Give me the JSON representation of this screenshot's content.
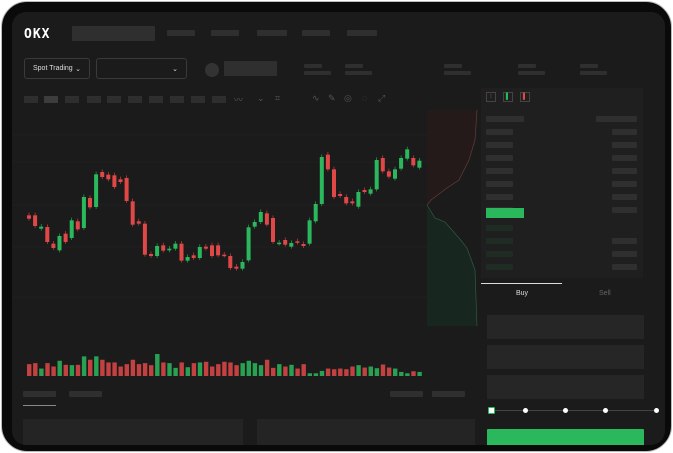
{
  "header": {
    "logo": "OKX"
  },
  "toolbar": {
    "market_type": "Spot Trading",
    "pair_value": ""
  },
  "order_form": {
    "tabs": [
      "Buy",
      "Sell"
    ],
    "active_tab": "Buy",
    "slider_percent": 0,
    "slider_stops": [
      0,
      25,
      50,
      75,
      100
    ]
  },
  "colors": {
    "up": "#2bb85c",
    "down": "#e04848",
    "background": "#1b1b1b",
    "frame": "#0a0a0a"
  },
  "icons": [
    "chevron-down-icon",
    "line-tool-icon",
    "pencil-icon",
    "settings-icon",
    "fullscreen-icon",
    "orderbook-layout-icon"
  ],
  "chart_data": {
    "type": "candlestick",
    "ylim": [
      0,
      420
    ],
    "candles": [
      [
        170,
        160
      ],
      [
        170,
        138
      ],
      [
        130,
        136
      ],
      [
        135,
        90
      ],
      [
        85,
        72
      ],
      [
        65,
        108
      ],
      [
        115,
        90
      ],
      [
        102,
        155
      ],
      [
        152,
        128
      ],
      [
        132,
        225
      ],
      [
        222,
        194
      ],
      [
        195,
        293
      ],
      [
        300,
        285
      ],
      [
        292,
        278
      ],
      [
        290,
        255
      ],
      [
        278,
        270
      ],
      [
        282,
        213
      ],
      [
        212,
        142
      ],
      [
        152,
        145
      ],
      [
        145,
        52
      ],
      [
        54,
        48
      ],
      [
        48,
        78
      ],
      [
        80,
        64
      ],
      [
        65,
        70
      ],
      [
        70,
        85
      ],
      [
        85,
        34
      ],
      [
        34,
        45
      ],
      [
        50,
        42
      ],
      [
        42,
        75
      ],
      [
        76,
        70
      ],
      [
        80,
        48
      ],
      [
        80,
        50
      ],
      [
        52,
        50
      ],
      [
        48,
        12
      ],
      [
        16,
        10
      ],
      [
        10,
        30
      ],
      [
        35,
        134
      ],
      [
        136,
        150
      ],
      [
        150,
        180
      ],
      [
        176,
        142
      ],
      [
        162,
        90
      ],
      [
        85,
        88
      ],
      [
        96,
        82
      ],
      [
        76,
        87
      ],
      [
        92,
        88
      ],
      [
        84,
        78
      ],
      [
        85,
        155
      ],
      [
        152,
        204
      ],
      [
        204,
        345
      ],
      [
        352,
        308
      ],
      [
        308,
        225
      ],
      [
        234,
        228
      ],
      [
        225,
        206
      ],
      [
        212,
        206
      ],
      [
        196,
        240
      ],
      [
        246,
        240
      ],
      [
        235,
        248
      ],
      [
        248,
        336
      ],
      [
        342,
        302
      ],
      [
        302,
        286
      ],
      [
        280,
        308
      ],
      [
        310,
        342
      ],
      [
        340,
        368
      ],
      [
        342,
        320
      ],
      [
        313,
        334
      ]
    ],
    "volume": [
      35,
      38,
      22,
      38,
      28,
      45,
      33,
      32,
      33,
      58,
      48,
      58,
      48,
      40,
      40,
      28,
      35,
      48,
      35,
      38,
      32,
      65,
      40,
      38,
      24,
      40,
      26,
      38,
      40,
      42,
      28,
      35,
      42,
      40,
      32,
      38,
      45,
      38,
      32,
      48,
      24,
      35,
      28,
      33,
      22,
      35,
      8,
      8,
      15,
      22,
      20,
      22,
      20,
      28,
      32,
      25,
      28,
      23,
      34,
      25,
      22,
      12,
      8,
      14,
      12
    ]
  }
}
